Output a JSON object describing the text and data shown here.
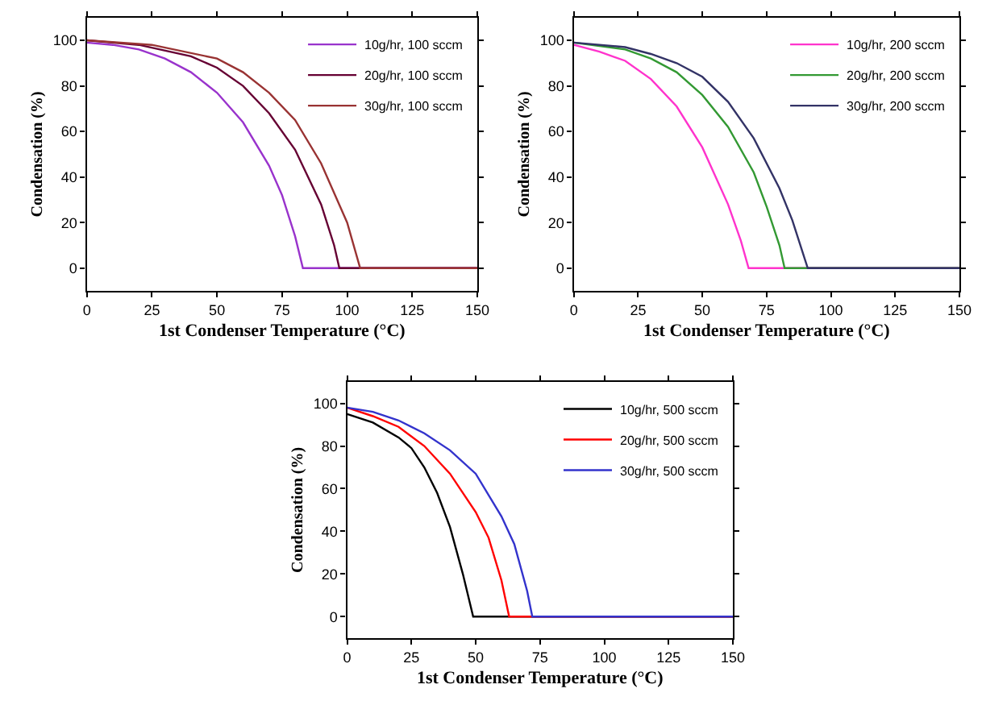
{
  "chart_data": [
    {
      "type": "line",
      "xlabel": "1st Condenser Temperature (°C)",
      "ylabel": "Condensation (%)",
      "xlim": [
        0,
        150
      ],
      "ylim": [
        -10,
        110
      ],
      "xticks": [
        0,
        25,
        50,
        75,
        100,
        125,
        150
      ],
      "yticks": [
        0,
        20,
        40,
        60,
        80,
        100
      ],
      "legend": "top right",
      "marker": "none",
      "line_style": "solid",
      "series": [
        {
          "name": "10g/hr, 100 sccm",
          "color": "#9933cc",
          "x": [
            0,
            10,
            20,
            30,
            40,
            50,
            60,
            70,
            75,
            80,
            83,
            150
          ],
          "values": [
            99,
            98,
            96,
            92,
            86,
            77,
            64,
            45,
            32,
            14,
            0,
            0
          ]
        },
        {
          "name": "20g/hr, 100 sccm",
          "color": "#660033",
          "x": [
            0,
            20,
            40,
            50,
            60,
            70,
            80,
            90,
            95,
            97,
            150
          ],
          "values": [
            100,
            98,
            93,
            88,
            80,
            68,
            52,
            28,
            10,
            0,
            0
          ]
        },
        {
          "name": "30g/hr, 100 sccm",
          "color": "#993333",
          "x": [
            0,
            25,
            50,
            60,
            70,
            80,
            90,
            100,
            105,
            150
          ],
          "values": [
            100,
            98,
            92,
            86,
            77,
            65,
            46,
            20,
            0,
            0
          ]
        }
      ]
    },
    {
      "type": "line",
      "xlabel": "1st Condenser Temperature (°C)",
      "ylabel": "Condensation (%)",
      "xlim": [
        0,
        150
      ],
      "ylim": [
        -10,
        110
      ],
      "xticks": [
        0,
        25,
        50,
        75,
        100,
        125,
        150
      ],
      "yticks": [
        0,
        20,
        40,
        60,
        80,
        100
      ],
      "legend": "top right",
      "marker": "none",
      "line_style": "solid",
      "series": [
        {
          "name": "10g/hr, 200 sccm",
          "color": "#ff33cc",
          "x": [
            0,
            10,
            20,
            30,
            40,
            50,
            60,
            65,
            68,
            150
          ],
          "values": [
            98,
            95,
            91,
            83,
            71,
            53,
            28,
            12,
            0,
            0
          ]
        },
        {
          "name": "20g/hr, 200 sccm",
          "color": "#339933",
          "x": [
            0,
            20,
            30,
            40,
            50,
            60,
            70,
            75,
            80,
            82,
            150
          ],
          "values": [
            99,
            96,
            92,
            86,
            76,
            62,
            42,
            27,
            10,
            0,
            0
          ]
        },
        {
          "name": "30g/hr, 200 sccm",
          "color": "#333366",
          "x": [
            0,
            20,
            30,
            40,
            50,
            60,
            70,
            80,
            85,
            91,
            150
          ],
          "values": [
            99,
            97,
            94,
            90,
            84,
            73,
            57,
            35,
            21,
            0,
            0
          ]
        }
      ]
    },
    {
      "type": "line",
      "xlabel": "1st Condenser Temperature (°C)",
      "ylabel": "Condensation (%)",
      "xlim": [
        0,
        150
      ],
      "ylim": [
        -10,
        110
      ],
      "xticks": [
        0,
        25,
        50,
        75,
        100,
        125,
        150
      ],
      "yticks": [
        0,
        20,
        40,
        60,
        80,
        100
      ],
      "legend": "top right",
      "marker": "none",
      "line_style": "solid",
      "series": [
        {
          "name": "10g/hr, 500 sccm",
          "color": "#000000",
          "x": [
            0,
            10,
            20,
            25,
            30,
            35,
            40,
            45,
            49,
            150
          ],
          "values": [
            95,
            91,
            84,
            79,
            70,
            58,
            42,
            20,
            0,
            0
          ]
        },
        {
          "name": "20g/hr, 500 sccm",
          "color": "#ff0000",
          "x": [
            0,
            10,
            20,
            30,
            40,
            50,
            55,
            60,
            63,
            150
          ],
          "values": [
            98,
            94,
            89,
            80,
            67,
            49,
            37,
            17,
            0,
            0
          ]
        },
        {
          "name": "30g/hr, 500 sccm",
          "color": "#3333cc",
          "x": [
            0,
            10,
            20,
            30,
            40,
            50,
            60,
            65,
            70,
            72,
            150
          ],
          "values": [
            98,
            96,
            92,
            86,
            78,
            67,
            47,
            34,
            12,
            0,
            0
          ]
        }
      ]
    }
  ]
}
